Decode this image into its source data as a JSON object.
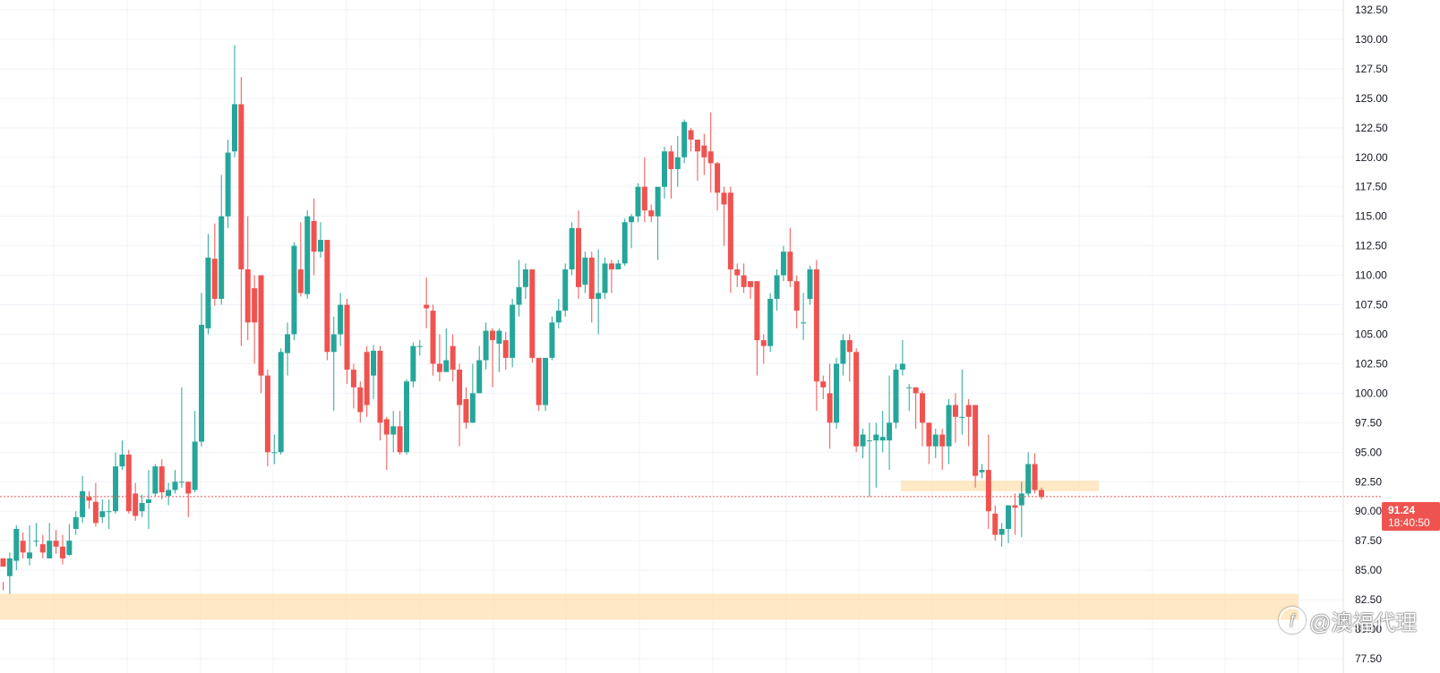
{
  "chart_data": {
    "type": "candlestick",
    "title": "",
    "xlabel": "",
    "ylabel": "",
    "ylim": [
      77.5,
      132.5
    ],
    "y_ticks": [
      "132.50",
      "130.00",
      "127.50",
      "125.00",
      "122.50",
      "120.00",
      "117.50",
      "115.00",
      "112.50",
      "110.00",
      "107.50",
      "105.00",
      "102.50",
      "100.00",
      "97.50",
      "95.00",
      "92.50",
      "90.00",
      "87.50",
      "85.00",
      "82.50",
      "80.00",
      "77.50"
    ],
    "grid": true,
    "colors": {
      "up": "#26a69a",
      "down": "#ef5350",
      "zone": "#ffe0b2",
      "grid": "#f0f3fa"
    },
    "current_price": {
      "value": 91.24,
      "label": "91.24",
      "countdown": "18:40:50"
    },
    "zones": [
      {
        "y_low": 80.8,
        "y_high": 83.0,
        "x_start": 0,
        "x_end": 176
      },
      {
        "y_low": 91.7,
        "y_high": 92.6,
        "x_start": 136,
        "x_end": 163
      }
    ],
    "candles": [
      [
        86.0,
        85.3,
        84.0,
        83.3
      ],
      [
        84.5,
        86.0,
        86.5,
        83.0
      ],
      [
        85.8,
        88.5,
        88.8,
        85.0
      ],
      [
        87.5,
        86.5,
        88.2,
        86.0
      ],
      [
        86.0,
        86.5,
        88.8,
        85.4
      ],
      [
        87.5,
        87.5,
        89.0,
        87.0
      ],
      [
        87.2,
        86.5,
        88.0,
        86.0
      ],
      [
        86.0,
        87.5,
        89.0,
        86.0
      ],
      [
        87.5,
        87.0,
        88.4,
        86.4
      ],
      [
        87.0,
        86.0,
        88.0,
        85.5
      ],
      [
        86.3,
        87.5,
        88.9,
        86.2
      ],
      [
        88.5,
        89.5,
        90.0,
        88.0
      ],
      [
        89.5,
        91.7,
        93.0,
        89.0
      ],
      [
        91.2,
        90.9,
        91.7,
        90.2
      ],
      [
        90.8,
        89.0,
        92.4,
        88.7
      ],
      [
        89.5,
        90.0,
        91.0,
        89.0
      ],
      [
        90.0,
        90.0,
        91.0,
        88.5
      ],
      [
        90.0,
        93.8,
        95.0,
        89.8
      ],
      [
        93.8,
        94.8,
        96.0,
        93.5
      ],
      [
        94.8,
        90.0,
        95.2,
        89.8
      ],
      [
        91.5,
        89.6,
        92.4,
        89.2
      ],
      [
        90.0,
        90.7,
        91.4,
        89.5
      ],
      [
        90.7,
        91.0,
        93.5,
        88.5
      ],
      [
        91.5,
        93.8,
        94.0,
        91.3
      ],
      [
        93.8,
        91.6,
        94.4,
        91.0
      ],
      [
        91.3,
        91.8,
        92.4,
        90.5
      ],
      [
        91.8,
        92.5,
        93.5,
        91.5
      ],
      [
        92.5,
        92.5,
        100.5,
        92.0
      ],
      [
        92.5,
        91.5,
        92.5,
        89.5
      ],
      [
        91.8,
        95.9,
        98.5,
        91.6
      ],
      [
        95.9,
        105.8,
        108.5,
        95.5
      ],
      [
        105.5,
        111.5,
        113.5,
        105.0
      ],
      [
        111.4,
        108.0,
        114.4,
        107.4
      ],
      [
        108.0,
        115.0,
        118.5,
        107.5
      ],
      [
        115.0,
        120.4,
        121.5,
        114.0
      ],
      [
        120.5,
        124.5,
        129.5,
        120.0
      ],
      [
        124.5,
        110.5,
        126.8,
        104.0
      ],
      [
        110.5,
        106.0,
        115.0,
        104.5
      ],
      [
        108.9,
        106.0,
        110.0,
        102.5
      ],
      [
        110.0,
        101.5,
        110.0,
        100.0
      ],
      [
        101.5,
        95.0,
        102.0,
        93.8
      ],
      [
        95.0,
        95.0,
        96.5,
        94.0
      ],
      [
        95.0,
        103.5,
        103.8,
        94.8
      ],
      [
        103.4,
        105.0,
        106.0,
        101.5
      ],
      [
        105.0,
        112.5,
        112.8,
        104.5
      ],
      [
        110.5,
        108.5,
        114.5,
        108.2
      ],
      [
        108.4,
        115.0,
        115.5,
        108.0
      ],
      [
        114.6,
        112.0,
        116.5,
        110.0
      ],
      [
        112.0,
        113.0,
        114.5,
        111.5
      ],
      [
        113.0,
        103.5,
        113.0,
        102.8
      ],
      [
        103.5,
        105.0,
        106.5,
        98.5
      ],
      [
        105.0,
        107.5,
        108.5,
        104.0
      ],
      [
        107.5,
        102.0,
        108.0,
        100.8
      ],
      [
        102.0,
        100.5,
        102.5,
        98.7
      ],
      [
        100.5,
        98.4,
        101.0,
        97.5
      ],
      [
        103.5,
        99.0,
        104.0,
        98.0
      ],
      [
        101.5,
        103.6,
        104.1,
        99.5
      ],
      [
        103.6,
        97.5,
        104.0,
        96.0
      ],
      [
        97.8,
        96.5,
        98.0,
        93.5
      ],
      [
        96.5,
        97.2,
        98.5,
        95.0
      ],
      [
        97.2,
        95.0,
        98.5,
        94.8
      ],
      [
        95.0,
        101.0,
        101.2,
        94.8
      ],
      [
        101.0,
        104.0,
        104.3,
        100.5
      ],
      [
        104.0,
        104.0,
        104.5,
        103.2
      ],
      [
        107.5,
        107.2,
        109.8,
        105.5
      ],
      [
        107.0,
        102.5,
        107.5,
        101.5
      ],
      [
        102.5,
        101.8,
        105.0,
        101.0
      ],
      [
        101.8,
        102.8,
        105.5,
        102.3
      ],
      [
        104.0,
        102.0,
        105.0,
        101.0
      ],
      [
        102.0,
        99.0,
        102.5,
        95.5
      ],
      [
        99.5,
        97.5,
        100.5,
        97.0
      ],
      [
        97.5,
        100.0,
        102.5,
        97.5
      ],
      [
        100.0,
        102.8,
        104.0,
        100.5
      ],
      [
        102.8,
        105.3,
        106.0,
        102.0
      ],
      [
        105.3,
        104.5,
        105.5,
        100.5
      ],
      [
        104.2,
        105.3,
        105.5,
        101.8
      ],
      [
        104.5,
        103.0,
        105.2,
        102.0
      ],
      [
        103.0,
        107.5,
        108.0,
        102.2
      ],
      [
        107.5,
        109.0,
        111.3,
        106.5
      ],
      [
        109.0,
        110.5,
        111.0,
        108.0
      ],
      [
        110.5,
        103.0,
        110.5,
        102.6
      ],
      [
        103.0,
        99.0,
        103.0,
        98.5
      ],
      [
        99.0,
        103.0,
        103.0,
        98.5
      ],
      [
        103.0,
        106.0,
        106.5,
        102.8
      ],
      [
        106.0,
        107.0,
        108.0,
        105.5
      ],
      [
        107.0,
        110.5,
        111.0,
        106.5
      ],
      [
        110.5,
        114.0,
        114.5,
        110.0
      ],
      [
        114.0,
        109.0,
        115.5,
        108.0
      ],
      [
        109.2,
        111.5,
        112.0,
        108.5
      ],
      [
        111.5,
        108.0,
        112.0,
        106.0
      ],
      [
        108.0,
        108.5,
        112.2,
        105.0
      ],
      [
        108.5,
        111.0,
        111.5,
        108.0
      ],
      [
        111.0,
        110.5,
        111.3,
        108.5
      ],
      [
        110.5,
        111.0,
        111.3,
        110.5
      ],
      [
        111.0,
        114.5,
        114.8,
        110.8
      ],
      [
        114.5,
        115.0,
        115.2,
        112.3
      ],
      [
        115.0,
        117.5,
        117.8,
        114.5
      ],
      [
        117.5,
        115.5,
        120.0,
        114.5
      ],
      [
        115.5,
        115.0,
        116.0,
        114.5
      ],
      [
        115.0,
        117.5,
        117.5,
        111.3
      ],
      [
        117.5,
        120.5,
        120.9,
        116.5
      ],
      [
        120.5,
        119.0,
        121.0,
        116.5
      ],
      [
        119.0,
        120.0,
        121.8,
        117.5
      ],
      [
        120.0,
        123.0,
        123.2,
        119.5
      ],
      [
        122.3,
        121.5,
        122.5,
        120.5
      ],
      [
        121.5,
        120.5,
        121.5,
        118.0
      ],
      [
        121.0,
        120.0,
        122.0,
        118.5
      ],
      [
        120.5,
        119.5,
        123.8,
        117.0
      ],
      [
        119.5,
        117.0,
        119.6,
        115.5
      ],
      [
        117.0,
        116.0,
        117.5,
        112.5
      ],
      [
        117.0,
        110.5,
        117.5,
        108.5
      ],
      [
        110.5,
        110.0,
        111.0,
        109.0
      ],
      [
        110.0,
        109.0,
        111.0,
        108.5
      ],
      [
        109.5,
        109.0,
        109.5,
        108.0
      ],
      [
        109.5,
        104.5,
        109.5,
        101.5
      ],
      [
        104.5,
        104.0,
        105.0,
        102.5
      ],
      [
        104.0,
        108.0,
        108.5,
        103.5
      ],
      [
        108.0,
        110.0,
        110.5,
        107.0
      ],
      [
        110.0,
        112.0,
        112.5,
        109.5
      ],
      [
        112.0,
        109.5,
        114.0,
        109.0
      ],
      [
        109.5,
        107.0,
        110.0,
        105.5
      ],
      [
        106.0,
        106.0,
        108.5,
        104.5
      ],
      [
        108.0,
        110.5,
        110.8,
        107.5
      ],
      [
        110.5,
        101.0,
        111.3,
        98.5
      ],
      [
        101.0,
        100.5,
        101.5,
        99.5
      ],
      [
        100.0,
        97.5,
        102.5,
        95.3
      ],
      [
        97.5,
        102.5,
        103.0,
        97.0
      ],
      [
        102.5,
        104.5,
        105.0,
        101.5
      ],
      [
        104.5,
        103.5,
        105.0,
        101.0
      ],
      [
        103.5,
        95.5,
        103.8,
        95.0
      ],
      [
        95.5,
        96.5,
        97.0,
        94.5
      ],
      [
        96.0,
        96.0,
        97.5,
        91.2
      ],
      [
        96.0,
        96.5,
        97.5,
        92.0
      ],
      [
        96.0,
        96.3,
        98.5,
        95.0
      ],
      [
        96.0,
        97.5,
        101.5,
        93.5
      ],
      [
        97.5,
        102.0,
        102.5,
        97.0
      ],
      [
        102.0,
        102.5,
        104.5,
        101.5
      ],
      [
        100.5,
        100.5,
        100.8,
        98.5
      ],
      [
        100.5,
        100.0,
        100.5,
        97.0
      ],
      [
        100.0,
        97.5,
        100.2,
        95.5
      ],
      [
        97.5,
        95.5,
        97.5,
        94.0
      ],
      [
        95.5,
        96.5,
        97.0,
        94.5
      ],
      [
        96.5,
        95.5,
        97.0,
        93.5
      ],
      [
        95.5,
        99.0,
        99.5,
        94.0
      ],
      [
        99.0,
        98.0,
        100.0,
        95.8
      ],
      [
        98.0,
        98.0,
        102.0,
        96.5
      ],
      [
        99.0,
        98.0,
        99.5,
        95.5
      ],
      [
        99.0,
        93.0,
        99.0,
        92.0
      ],
      [
        93.3,
        93.5,
        94.0,
        92.8
      ],
      [
        93.5,
        90.0,
        96.5,
        88.5
      ],
      [
        89.8,
        88.0,
        90.5,
        87.5
      ],
      [
        88.0,
        88.5,
        89.0,
        87.0
      ],
      [
        88.5,
        90.5,
        90.5,
        87.3
      ],
      [
        90.5,
        90.3,
        91.5,
        88.0
      ],
      [
        90.5,
        91.5,
        92.5,
        87.8
      ],
      [
        91.5,
        94.0,
        95.0,
        91.3
      ],
      [
        94.0,
        91.8,
        94.9,
        91.5
      ],
      [
        91.8,
        91.2,
        92.0,
        91.0
      ]
    ]
  },
  "watermark": {
    "text": "@澳福代理"
  }
}
